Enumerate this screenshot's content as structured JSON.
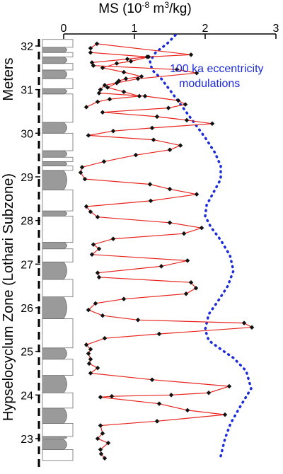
{
  "chart_data": {
    "type": "line",
    "title": "MS (10",
    "title_sup": "-8",
    "title_tail": " m",
    "title_sup2": "3",
    "title_end": "/kg)",
    "xlabel": "MS (10-8 m3/kg)",
    "ylabel_meters": "Meters",
    "ylabel_zone": "Hypselocyclum Zone (Lothari Subzone)",
    "xlim": [
      0,
      3
    ],
    "ylim": [
      22.4,
      32.3
    ],
    "x_ticks": [
      "0",
      "1",
      "2",
      "3"
    ],
    "y_ticks": [
      "23",
      "24",
      "25",
      "26",
      "27",
      "28",
      "29",
      "30",
      "31",
      "32"
    ],
    "series": [
      {
        "x": [
          0.58,
          0.53,
          0.52,
          0.63,
          0.48,
          0.55,
          0.52,
          1.32,
          2.28,
          1.75,
          1.35,
          0.52,
          0.68,
          1.52,
          2.05,
          2.34,
          1.25,
          0.38,
          0.48,
          0.36,
          0.38,
          0.35,
          0.38,
          0.32,
          0.58,
          1.35,
          2.66,
          2.55,
          1.05,
          0.55,
          0.35,
          0.45,
          0.85,
          1.73,
          1.87,
          1.8,
          0.5,
          0.48,
          1.38,
          1.75,
          0.4,
          0.5,
          0.42,
          0.7,
          1.7,
          1.95,
          1.5,
          0.48,
          0.38,
          0.32,
          1.23,
          1.88,
          1.5,
          1.22,
          0.3,
          0.24,
          0.26,
          0.57,
          1.02,
          1.5,
          1.65,
          1.27,
          0.35,
          0.7,
          1.25,
          2.1,
          1.74,
          1.32,
          0.55,
          1.48,
          1.72,
          1.62,
          1.15,
          0.5,
          0.52,
          0.58,
          1.05,
          1.88,
          1.6,
          0.42,
          0.4,
          0.9,
          1.18,
          0.38,
          0.38,
          0.47,
          1.8,
          1.2,
          0.95,
          0.75,
          0.55,
          0.85,
          1.1,
          0.88,
          0.78,
          0.75,
          0.62,
          0.85,
          1.07,
          0.65,
          0.48,
          0.32
        ],
        "y": [
          22.55,
          22.65,
          22.75,
          22.9,
          23.0,
          23.12,
          23.3,
          23.4,
          23.55,
          23.65,
          23.8,
          23.95,
          23.97,
          24.0,
          24.05,
          24.2,
          24.35,
          24.5,
          24.62,
          24.72,
          24.82,
          24.95,
          25.05,
          25.15,
          25.3,
          25.4,
          25.55,
          25.65,
          25.72,
          25.82,
          25.95,
          26.1,
          26.2,
          26.32,
          26.45,
          26.58,
          26.7,
          26.8,
          26.95,
          27.08,
          27.22,
          27.35,
          27.45,
          27.58,
          27.7,
          27.83,
          27.95,
          28.08,
          28.2,
          28.32,
          28.45,
          28.6,
          28.72,
          28.83,
          28.95,
          29.1,
          29.22,
          29.35,
          29.5,
          29.62,
          29.72,
          29.85,
          29.95,
          30.05,
          30.12,
          30.22,
          30.3,
          30.38,
          30.48,
          30.58,
          30.66,
          30.75,
          30.85,
          30.92,
          31.0,
          31.1,
          31.25,
          31.38,
          31.46,
          31.55,
          31.62,
          31.7,
          31.75,
          31.85,
          31.95,
          32.05,
          31.8,
          31.75,
          31.65,
          31.6,
          31.5,
          31.4,
          31.3,
          31.25,
          31.2,
          31.15,
          31.05,
          30.95,
          30.85,
          30.78,
          30.72,
          30.6
        ]
      }
    ],
    "envelope": {
      "name": "100 ka eccentricity modulations",
      "x": [
        2.22,
        2.28,
        2.36,
        2.5,
        2.65,
        2.58,
        2.4,
        2.22,
        2.05,
        2.0,
        2.05,
        2.18,
        2.32,
        2.4,
        2.35,
        2.22,
        2.08,
        2.0,
        2.02,
        2.12,
        2.22,
        2.22,
        2.14,
        2.0,
        1.84,
        1.68,
        1.52,
        1.38,
        1.25,
        1.22,
        1.3,
        1.46,
        1.58
      ],
      "y": [
        22.6,
        23.0,
        23.35,
        23.75,
        24.15,
        24.55,
        24.85,
        25.05,
        25.25,
        25.5,
        25.85,
        26.15,
        26.5,
        26.85,
        27.2,
        27.55,
        27.85,
        28.1,
        28.35,
        28.65,
        28.95,
        29.25,
        29.55,
        29.9,
        30.25,
        30.6,
        30.95,
        31.25,
        31.45,
        31.65,
        31.85,
        32.05,
        32.25
      ]
    },
    "lithology_beds": [
      {
        "y0": 22.5,
        "y1": 22.75,
        "type": "white"
      },
      {
        "y0": 22.75,
        "y1": 22.98,
        "type": "grey"
      },
      {
        "y0": 23.0,
        "y1": 23.05,
        "type": "grey"
      },
      {
        "y0": 23.05,
        "y1": 23.35,
        "type": "white"
      },
      {
        "y0": 23.35,
        "y1": 23.7,
        "type": "grey"
      },
      {
        "y0": 23.7,
        "y1": 24.05,
        "type": "white"
      },
      {
        "y0": 24.05,
        "y1": 24.45,
        "type": "grey"
      },
      {
        "y0": 24.45,
        "y1": 24.82,
        "type": "white"
      },
      {
        "y0": 24.82,
        "y1": 25.08,
        "type": "grey"
      },
      {
        "y0": 25.08,
        "y1": 25.75,
        "type": "white"
      },
      {
        "y0": 25.75,
        "y1": 26.25,
        "type": "grey"
      },
      {
        "y0": 26.25,
        "y1": 26.65,
        "type": "white"
      },
      {
        "y0": 26.65,
        "y1": 27.05,
        "type": "grey"
      },
      {
        "y0": 27.05,
        "y1": 27.35,
        "type": "white"
      },
      {
        "y0": 27.35,
        "y1": 27.5,
        "type": "grey"
      },
      {
        "y0": 27.5,
        "y1": 28.1,
        "type": "white"
      },
      {
        "y0": 28.1,
        "y1": 28.22,
        "type": "grey"
      },
      {
        "y0": 28.22,
        "y1": 28.7,
        "type": "white"
      },
      {
        "y0": 28.7,
        "y1": 29.15,
        "type": "grey"
      },
      {
        "y0": 29.15,
        "y1": 29.25,
        "type": "white"
      },
      {
        "y0": 29.25,
        "y1": 29.35,
        "type": "grey"
      },
      {
        "y0": 29.35,
        "y1": 29.45,
        "type": "white"
      },
      {
        "y0": 29.45,
        "y1": 29.6,
        "type": "grey"
      },
      {
        "y0": 29.6,
        "y1": 30.0,
        "type": "white"
      },
      {
        "y0": 30.0,
        "y1": 30.25,
        "type": "grey"
      },
      {
        "y0": 30.25,
        "y1": 30.9,
        "type": "white"
      },
      {
        "y0": 30.9,
        "y1": 31.02,
        "type": "grey"
      },
      {
        "y0": 31.02,
        "y1": 31.25,
        "type": "white"
      },
      {
        "y0": 31.25,
        "y1": 31.45,
        "type": "grey"
      },
      {
        "y0": 31.45,
        "y1": 31.6,
        "type": "white"
      },
      {
        "y0": 31.6,
        "y1": 31.75,
        "type": "grey"
      },
      {
        "y0": 31.75,
        "y1": 31.85,
        "type": "white"
      },
      {
        "y0": 31.85,
        "y1": 31.97,
        "type": "grey"
      },
      {
        "y0": 31.97,
        "y1": 32.15,
        "type": "white"
      }
    ],
    "annotation": [
      "100 ka eccentricity",
      "modulations"
    ],
    "colors": {
      "series": "#e8251f",
      "markers": "#111111",
      "envelope": "#1c2bd8",
      "annotation": "#1c2bd8",
      "grey_bed": "#9a9a9a",
      "white_bed": "#ffffff",
      "bed_outline": "#6f6f6f"
    },
    "grid": false
  }
}
